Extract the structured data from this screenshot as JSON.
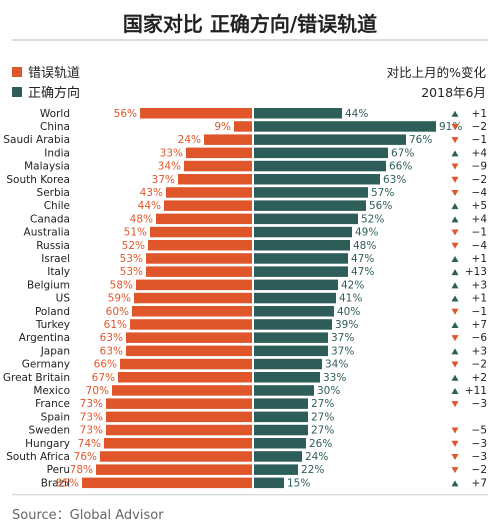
{
  "title": "国家对比 正确方向/错误轨道",
  "legend": {
    "wrong": "错误轨道",
    "right": "正确方向"
  },
  "change_header": "对比上月的%变化",
  "date": "2018年6月",
  "source": "Source：Global Advisor",
  "colors": {
    "wrong": "#E0562B",
    "right": "#2E5E5A",
    "up": "#2E5E5A",
    "down": "#E0562B"
  },
  "chart_data": {
    "type": "bar",
    "categories": [
      "World",
      "China",
      "Saudi Arabia",
      "India",
      "Malaysia",
      "South Korea",
      "Serbia",
      "Chile",
      "Canada",
      "Australia",
      "Russia",
      "Israel",
      "Italy",
      "Belgium",
      "US",
      "Poland",
      "Turkey",
      "Argentina",
      "Japan",
      "Germany",
      "Great Britain",
      "Mexico",
      "France",
      "Spain",
      "Sweden",
      "Hungary",
      "South Africa",
      "Peru",
      "Brazil"
    ],
    "series": [
      {
        "name": "错误轨道",
        "values": [
          56,
          9,
          24,
          33,
          34,
          37,
          43,
          44,
          48,
          51,
          52,
          53,
          53,
          58,
          59,
          60,
          61,
          63,
          63,
          66,
          67,
          70,
          73,
          73,
          73,
          74,
          76,
          78,
          85
        ],
        "labels": [
          "56%",
          "9%",
          "24%",
          "33%",
          "34%",
          "37%",
          "43%",
          "44%",
          "48%",
          "51%",
          "52%",
          "53%",
          "53%",
          "58%",
          "59%",
          "60%",
          "61%",
          "63%",
          "63%",
          "66%",
          "67%",
          "70%",
          "73%",
          "73%",
          "73%",
          "74%",
          "76%",
          "78%",
          "85%"
        ]
      },
      {
        "name": "正确方向",
        "values": [
          44,
          91,
          76,
          67,
          66,
          63,
          57,
          56,
          52,
          49,
          48,
          47,
          47,
          42,
          41,
          40,
          39,
          37,
          37,
          34,
          33,
          30,
          27,
          27,
          27,
          26,
          24,
          22,
          15
        ],
        "labels": [
          "44%",
          "91%",
          "76%",
          "67%",
          "66%",
          "63%",
          "57%",
          "56%",
          "52%",
          "49%",
          "48%",
          "47%",
          "47%",
          "42%",
          "41%",
          "40%",
          "39%",
          "37%",
          "37%",
          "34%",
          "33%",
          "30%",
          "27%",
          "27%",
          "27%",
          "26%",
          "24%",
          "22%",
          "15%"
        ]
      }
    ],
    "change": {
      "direction": [
        "up",
        "down",
        "down",
        "up",
        "down",
        "down",
        "down",
        "up",
        "up",
        "down",
        "down",
        "up",
        "up",
        "up",
        "up",
        "down",
        "up",
        "down",
        "up",
        "down",
        "up",
        "up",
        "down",
        "",
        "down",
        "down",
        "down",
        "down",
        "up"
      ],
      "labels": [
        "+1",
        "−2",
        "−1",
        "+4",
        "−9",
        "−2",
        "−4",
        "+5",
        "+4",
        "−1",
        "−4",
        "+1",
        "+13",
        "+3",
        "+1",
        "−1",
        "+7",
        "−6",
        "+3",
        "−2",
        "+2",
        "+11",
        "−3",
        "",
        "−5",
        "−3",
        "−3",
        "−2",
        "+7"
      ]
    },
    "xlim": [
      0,
      100
    ]
  }
}
